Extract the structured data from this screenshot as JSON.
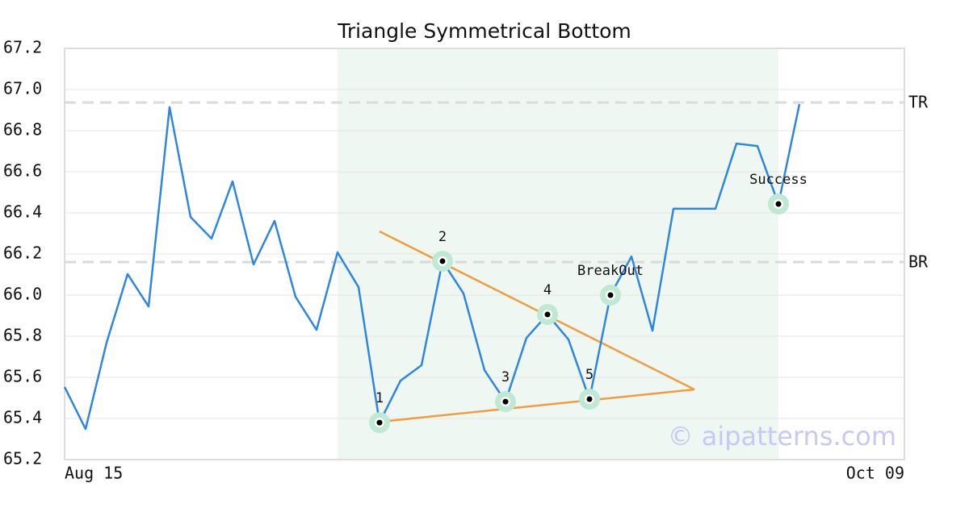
{
  "chart_data": {
    "type": "line",
    "title": "Triangle Symmetrical Bottom",
    "categories": [
      "Aug 15",
      null,
      null,
      null,
      null,
      null,
      null,
      null,
      null,
      null,
      null,
      null,
      null,
      null,
      null,
      null,
      null,
      null,
      null,
      null,
      null,
      null,
      null,
      null,
      null,
      null,
      null,
      null,
      null,
      null,
      null,
      null,
      null,
      null,
      null,
      null,
      null,
      null,
      null,
      null,
      "Oct 09"
    ],
    "series": [
      {
        "color": "#2e86de",
        "values": [
          65.553,
          65.349,
          65.769,
          66.102,
          65.945,
          66.914,
          66.38,
          66.275,
          66.553,
          66.149,
          66.361,
          65.992,
          65.831,
          66.208,
          66.039,
          65.38,
          65.584,
          65.659,
          66.165,
          66.008,
          65.635,
          65.482,
          65.792,
          65.906,
          65.784,
          65.494,
          66.0,
          66.188,
          65.827,
          66.42,
          66.42,
          66.42,
          66.737,
          66.725,
          66.443,
          66.929,
          null,
          null,
          null,
          null,
          null
        ]
      }
    ],
    "ylim": [
      65.2,
      67.2
    ],
    "yticks": [
      65.2,
      65.4,
      65.6,
      65.8,
      {
        "value": 66.0,
        "label": "66.0"
      },
      66.2,
      66.4,
      66.6,
      66.8,
      {
        "value": 67.0,
        "label": "67.0"
      },
      67.2
    ],
    "grid": true,
    "highlight_range": [
      13,
      34
    ],
    "hlines": [
      {
        "label": "TR",
        "value": 66.937
      },
      {
        "label": "BR",
        "value": 66.161
      }
    ],
    "trendlines": [
      {
        "color": "#f39c3d",
        "from": [
          15,
          66.31
        ],
        "to": [
          30,
          65.541
        ]
      },
      {
        "color": "#f39c3d",
        "from": [
          15,
          65.384
        ],
        "to": [
          30,
          65.541
        ]
      }
    ],
    "annotations": [
      {
        "label": "1",
        "index": 15
      },
      {
        "label": "2",
        "index": 18
      },
      {
        "label": "3",
        "index": 21
      },
      {
        "label": "4",
        "index": 23
      },
      {
        "label": "5",
        "index": 25
      },
      {
        "label": "BreakOut",
        "index": 26
      },
      {
        "label": "Success",
        "index": 34
      }
    ],
    "watermark": "© aipatterns.com"
  }
}
